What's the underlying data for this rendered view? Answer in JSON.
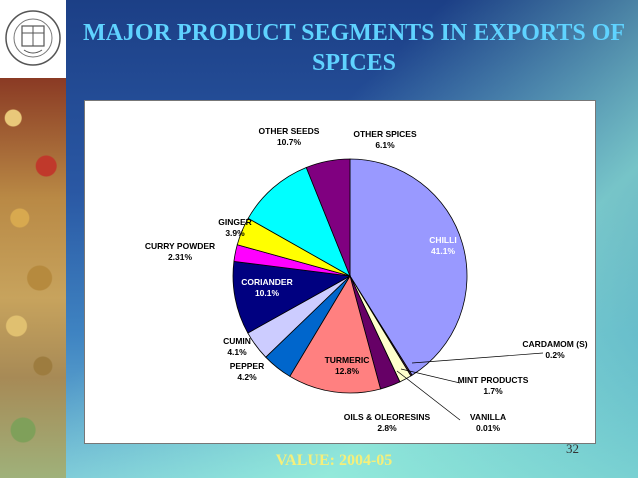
{
  "slide": {
    "title": "MAJOR PRODUCT SEGMENTS IN EXPORTS OF SPICES",
    "footer": "VALUE: 2004-05",
    "slide_number": "32"
  },
  "chart_data": {
    "type": "pie",
    "title": "",
    "slices": [
      {
        "name": "CHILLI",
        "label": "41.1%",
        "value": 41.1,
        "color": "#9999ff"
      },
      {
        "name": "CARDAMOM  (S)",
        "label": "0.2%",
        "value": 0.2,
        "color": "#5a2a4a"
      },
      {
        "name": "MINT PRODUCTS",
        "label": "1.7%",
        "value": 1.7,
        "color": "#ffffcc"
      },
      {
        "name": "VANILLA",
        "label": "0.01%",
        "value": 0.01,
        "color": "#ccffff"
      },
      {
        "name": "OILS &  OLEORESINS",
        "label": "2.8%",
        "value": 2.8,
        "color": "#660066"
      },
      {
        "name": "TURMERIC",
        "label": "12.8%",
        "value": 12.8,
        "color": "#ff8080"
      },
      {
        "name": "PEPPER",
        "label": "4.2%",
        "value": 4.2,
        "color": "#0066cc"
      },
      {
        "name": "CUMIN",
        "label": "4.1%",
        "value": 4.1,
        "color": "#ccccff"
      },
      {
        "name": "CORIANDER",
        "label": "10.1%",
        "value": 10.1,
        "color": "#000080"
      },
      {
        "name": "CURRY  POWDER",
        "label": "2.31%",
        "value": 2.31,
        "color": "#ff00ff"
      },
      {
        "name": "GINGER",
        "label": "3.9%",
        "value": 3.9,
        "color": "#ffff00"
      },
      {
        "name": "OTHER SEEDS",
        "label": "10.7%",
        "value": 10.7,
        "color": "#00ffff"
      },
      {
        "name": "OTHER SPICES",
        "label": "6.1%",
        "value": 6.1,
        "color": "#800080"
      }
    ]
  }
}
